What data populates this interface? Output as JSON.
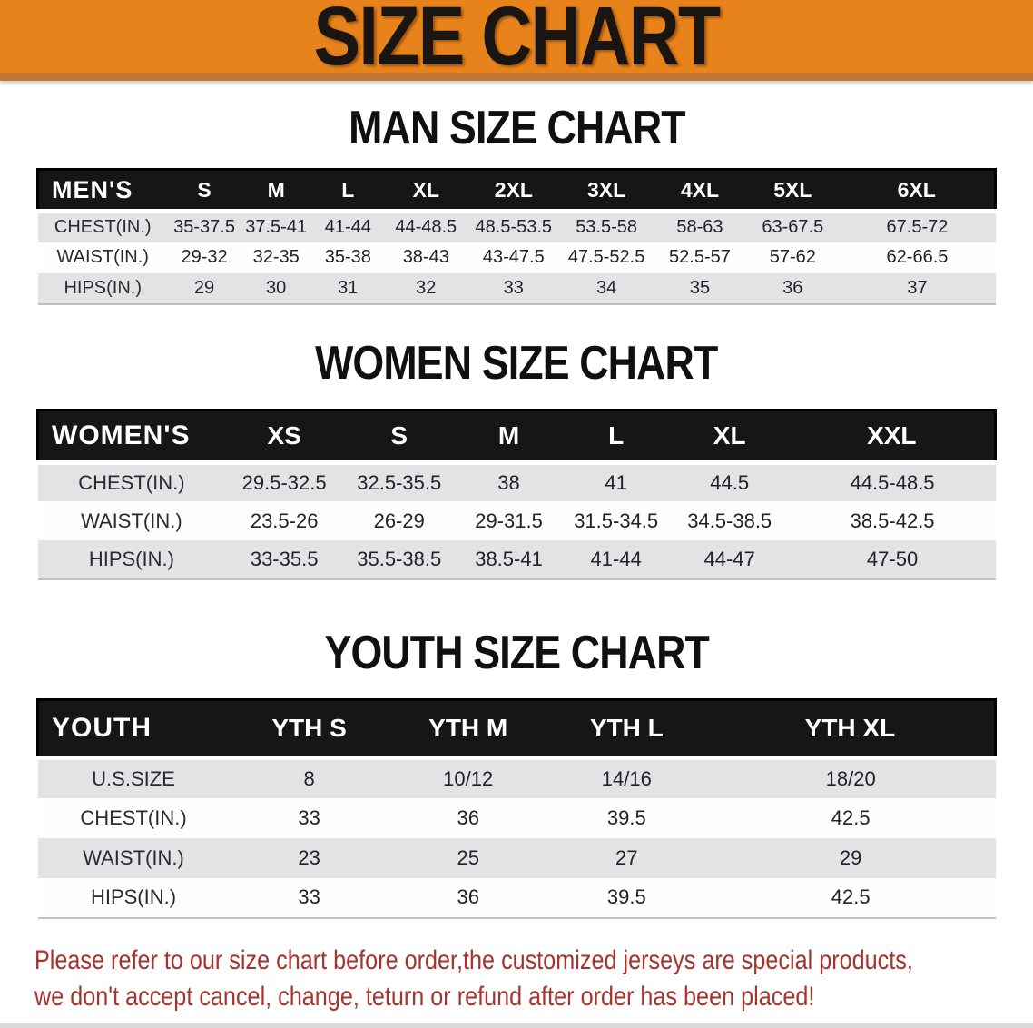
{
  "banner": {
    "title": "SIZE CHART"
  },
  "sections": [
    {
      "heading": "MAN SIZE CHART",
      "group_label": "MEN'S",
      "columns": [
        "S",
        "M",
        "L",
        "XL",
        "2XL",
        "3XL",
        "4XL",
        "5XL",
        "6XL"
      ],
      "rows": [
        {
          "label": "CHEST(IN.)",
          "values": [
            "35-37.5",
            "37.5-41",
            "41-44",
            "44-48.5",
            "48.5-53.5",
            "53.5-58",
            "58-63",
            "63-67.5",
            "67.5-72"
          ]
        },
        {
          "label": "WAIST(IN.)",
          "values": [
            "29-32",
            "32-35",
            "35-38",
            "38-43",
            "43-47.5",
            "47.5-52.5",
            "52.5-57",
            "57-62",
            "62-66.5"
          ]
        },
        {
          "label": "HIPS(IN.)",
          "values": [
            "29",
            "30",
            "31",
            "32",
            "33",
            "34",
            "35",
            "36",
            "37"
          ]
        }
      ]
    },
    {
      "heading": "WOMEN SIZE CHART",
      "group_label": "WOMEN'S",
      "columns": [
        "XS",
        "S",
        "M",
        "L",
        "XL",
        "XXL"
      ],
      "rows": [
        {
          "label": "CHEST(IN.)",
          "values": [
            "29.5-32.5",
            "32.5-35.5",
            "38",
            "41",
            "44.5",
            "44.5-48.5"
          ]
        },
        {
          "label": "WAIST(IN.)",
          "values": [
            "23.5-26",
            "26-29",
            "29-31.5",
            "31.5-34.5",
            "34.5-38.5",
            "38.5-42.5"
          ]
        },
        {
          "label": "HIPS(IN.)",
          "values": [
            "33-35.5",
            "35.5-38.5",
            "38.5-41",
            "41-44",
            "44-47",
            "47-50"
          ]
        }
      ]
    },
    {
      "heading": "YOUTH SIZE CHART",
      "group_label": "YOUTH",
      "columns": [
        "YTH S",
        "YTH M",
        "YTH L",
        "YTH XL"
      ],
      "rows": [
        {
          "label": "U.S.SIZE",
          "values": [
            "8",
            "10/12",
            "14/16",
            "18/20"
          ]
        },
        {
          "label": "CHEST(IN.)",
          "values": [
            "33",
            "36",
            "39.5",
            "42.5"
          ]
        },
        {
          "label": "WAIST(IN.)",
          "values": [
            "23",
            "25",
            "27",
            "29"
          ]
        },
        {
          "label": "HIPS(IN.)",
          "values": [
            "33",
            "36",
            "39.5",
            "42.5"
          ]
        }
      ]
    }
  ],
  "footnote": {
    "lines": [
      "Please refer to our size chart before order,the customized jerseys are special products,",
      "we don't accept cancel, change, teturn or refund after order has been placed!"
    ]
  },
  "colors": {
    "banner_orange": "#E8821A",
    "banner_orange_dark": "#C4762E",
    "bar_black": "#161616",
    "row_gray": "#E3E3E6",
    "footnote_red": "#A8322C"
  }
}
